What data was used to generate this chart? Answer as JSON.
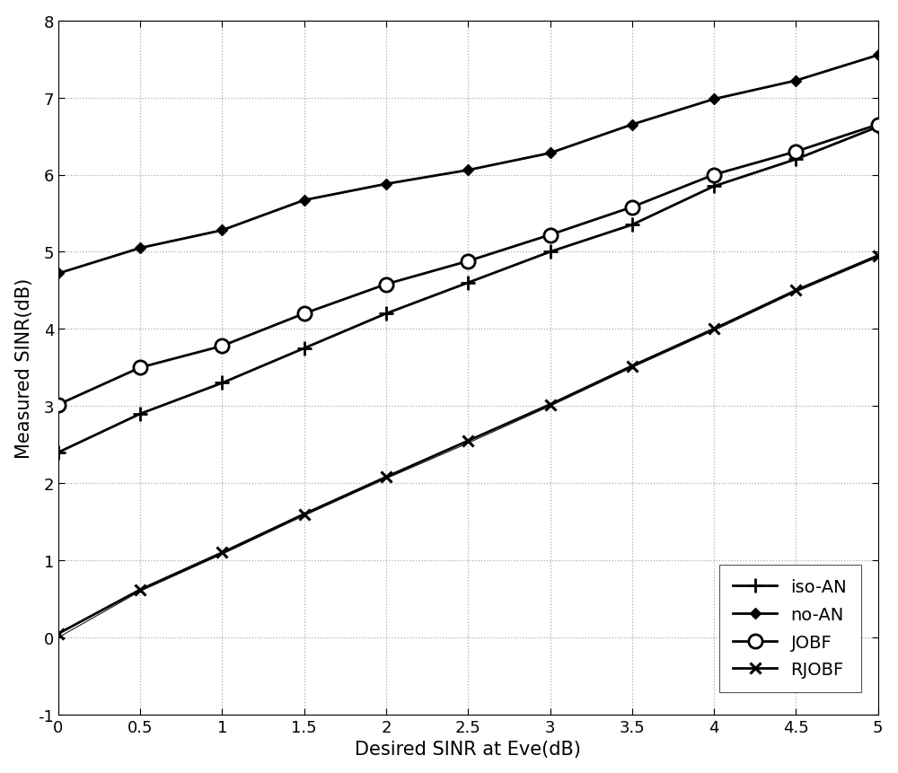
{
  "x": [
    0,
    0.5,
    1,
    1.5,
    2,
    2.5,
    3,
    3.5,
    4,
    4.5,
    5
  ],
  "iso_AN": [
    2.4,
    2.9,
    3.3,
    3.75,
    4.2,
    4.6,
    5.0,
    5.35,
    5.85,
    6.2,
    6.62
  ],
  "no_AN": [
    4.72,
    5.05,
    5.28,
    5.67,
    5.88,
    6.06,
    6.28,
    6.65,
    6.98,
    7.22,
    7.55
  ],
  "JOBF": [
    3.02,
    3.5,
    3.78,
    4.2,
    4.58,
    4.88,
    5.22,
    5.58,
    6.0,
    6.3,
    6.65
  ],
  "RJOBF": [
    0.05,
    0.62,
    1.1,
    1.6,
    2.08,
    2.55,
    3.02,
    3.52,
    4.0,
    4.5,
    4.95
  ],
  "RJOBF_thin": [
    0.0,
    0.6,
    1.08,
    1.58,
    2.06,
    2.52,
    3.0,
    3.5,
    3.98,
    4.48,
    4.93
  ],
  "xlabel": "Desired SINR at Eve(dB)",
  "ylabel": "Measured SINR(dB)",
  "xlim": [
    0,
    5
  ],
  "ylim": [
    -1,
    8
  ],
  "xtick_vals": [
    0,
    0.5,
    1,
    1.5,
    2,
    2.5,
    3,
    3.5,
    4,
    4.5,
    5
  ],
  "xtick_labels": [
    "0",
    "0.5",
    "1",
    "1.5",
    "2",
    "2.5",
    "3",
    "3.5",
    "4",
    "4.5",
    "5"
  ],
  "ytick_vals": [
    -1,
    0,
    1,
    2,
    3,
    4,
    5,
    6,
    7,
    8
  ],
  "ytick_labels": [
    "-1",
    "0",
    "1",
    "2",
    "3",
    "4",
    "5",
    "6",
    "7",
    "8"
  ],
  "legend_labels": [
    "iso-AN",
    "no-AN",
    "JOBF",
    "RJOBF"
  ],
  "color": "#000000",
  "linewidth": 2.0,
  "thin_linewidth": 0.7,
  "markersize": 8,
  "bg_color": "#ffffff",
  "grid_color": "#aaaaaa",
  "xlabel_fontsize": 15,
  "ylabel_fontsize": 15,
  "tick_fontsize": 13,
  "legend_fontsize": 14
}
